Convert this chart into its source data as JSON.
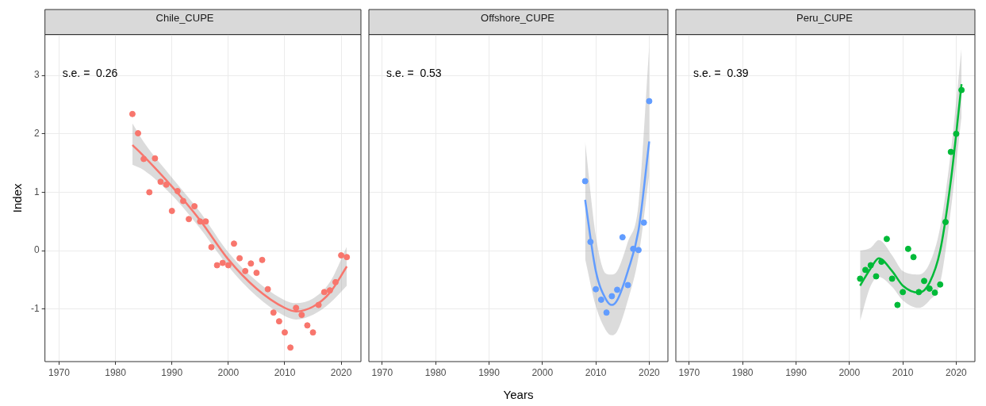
{
  "chart_data": [
    {
      "type": "scatter",
      "title": "Chile_CUPE",
      "ylabel": "Index",
      "annotations": [
        "s.e. =  0.26"
      ],
      "xlim": [
        1967.5,
        2023.5
      ],
      "ylim": [
        -1.9,
        3.7
      ],
      "xticks": [
        1970,
        1980,
        1990,
        2000,
        2010,
        2020
      ],
      "yticks": [
        -1,
        0,
        1,
        2,
        3
      ],
      "grid": true,
      "series": [
        {
          "marker": "circle",
          "color": "#f8766d",
          "x": [
            1983,
            1984,
            1985,
            1986,
            1987,
            1988,
            1989,
            1990,
            1991,
            1992,
            1993,
            1994,
            1995,
            1996,
            1997,
            1998,
            1999,
            2000,
            2001,
            2002,
            2003,
            2004,
            2005,
            2006,
            2007,
            2008,
            2009,
            2010,
            2011,
            2012,
            2013,
            2014,
            2015,
            2016,
            2017,
            2018,
            2019,
            2020,
            2021
          ],
          "values": [
            2.34,
            2.01,
            1.57,
            1.0,
            1.58,
            1.18,
            1.13,
            0.68,
            1.02,
            0.85,
            0.54,
            0.76,
            0.5,
            0.5,
            0.06,
            -0.25,
            -0.21,
            -0.25,
            0.12,
            -0.13,
            -0.35,
            -0.22,
            -0.38,
            -0.16,
            -0.66,
            -1.06,
            -1.21,
            -1.4,
            -1.66,
            -0.98,
            -1.1,
            -1.28,
            -1.4,
            -0.93,
            -0.71,
            -0.68,
            -0.54,
            -0.08,
            -0.11
          ]
        },
        {
          "type": "line",
          "marker": "none",
          "color": "#f8766d",
          "x": [
            1983,
            1985,
            1990,
            1995,
            2000,
            2005,
            2010,
            2012,
            2015,
            2018,
            2021
          ],
          "values": [
            1.81,
            1.62,
            1.1,
            0.52,
            -0.15,
            -0.65,
            -0.98,
            -1.04,
            -0.96,
            -0.72,
            -0.27
          ],
          "lower": [
            1.47,
            1.38,
            0.95,
            0.38,
            -0.27,
            -0.78,
            -1.12,
            -1.18,
            -1.1,
            -0.9,
            -0.6
          ],
          "upper": [
            2.18,
            1.86,
            1.25,
            0.66,
            -0.03,
            -0.52,
            -0.85,
            -0.9,
            -0.82,
            -0.54,
            0.07
          ]
        }
      ]
    },
    {
      "type": "scatter",
      "title": "Offshore_CUPE",
      "xlabel": "Years",
      "annotations": [
        "s.e. =  0.53"
      ],
      "xlim": [
        1967.5,
        2023.5
      ],
      "ylim": [
        -1.9,
        3.7
      ],
      "xticks": [
        1970,
        1980,
        1990,
        2000,
        2010,
        2020
      ],
      "yticks": [
        -1,
        0,
        1,
        2,
        3
      ],
      "tick_labels": "x",
      "grid": true,
      "series": [
        {
          "marker": "circle",
          "color": "#619cff",
          "x": [
            2008,
            2009,
            2010,
            2011,
            2012,
            2013,
            2014,
            2015,
            2016,
            2017,
            2018,
            2019,
            2020
          ],
          "values": [
            1.19,
            0.15,
            -0.66,
            -0.84,
            -1.06,
            -0.78,
            -0.67,
            0.23,
            -0.59,
            0.03,
            0.01,
            0.48,
            2.56
          ]
        },
        {
          "type": "line",
          "marker": "none",
          "color": "#619cff",
          "x": [
            2008,
            2010,
            2012,
            2013,
            2014,
            2016,
            2018,
            2020
          ],
          "values": [
            0.87,
            -0.35,
            -0.85,
            -0.93,
            -0.85,
            -0.35,
            0.35,
            1.87
          ],
          "lower": [
            -0.14,
            -0.95,
            -1.38,
            -1.45,
            -1.38,
            -0.85,
            -0.1,
            1.3
          ],
          "upper": [
            1.87,
            0.25,
            -0.4,
            -0.41,
            -0.35,
            0.15,
            0.8,
            3.5
          ]
        }
      ]
    },
    {
      "type": "scatter",
      "title": "Peru_CUPE",
      "annotations": [
        "s.e. =  0.39"
      ],
      "xlim": [
        1967.5,
        2023.5
      ],
      "ylim": [
        -1.9,
        3.7
      ],
      "xticks": [
        1970,
        1980,
        1990,
        2000,
        2010,
        2020
      ],
      "yticks": [
        -1,
        0,
        1,
        2,
        3
      ],
      "tick_labels": "x",
      "grid": true,
      "series": [
        {
          "marker": "circle",
          "color": "#00ba38",
          "x": [
            2002,
            2003,
            2004,
            2005,
            2006,
            2007,
            2008,
            2009,
            2010,
            2011,
            2012,
            2013,
            2014,
            2015,
            2016,
            2017,
            2018,
            2019,
            2020,
            2021
          ],
          "values": [
            -0.48,
            -0.33,
            -0.25,
            -0.44,
            -0.19,
            0.2,
            -0.48,
            -0.93,
            -0.71,
            0.03,
            -0.11,
            -0.71,
            -0.52,
            -0.65,
            -0.72,
            -0.58,
            0.49,
            1.69,
            2.0,
            2.75
          ]
        },
        {
          "type": "line",
          "marker": "none",
          "color": "#00ba38",
          "x": [
            2002,
            2004,
            2005.5,
            2008,
            2010,
            2013,
            2015,
            2017,
            2019,
            2021
          ],
          "values": [
            -0.6,
            -0.3,
            -0.13,
            -0.35,
            -0.6,
            -0.72,
            -0.55,
            0.0,
            1.2,
            2.85
          ],
          "lower": [
            -1.2,
            -0.6,
            -0.45,
            -0.62,
            -0.85,
            -0.98,
            -0.85,
            -0.55,
            0.7,
            2.3
          ],
          "upper": [
            0.0,
            0.05,
            0.18,
            -0.08,
            -0.35,
            -0.41,
            -0.22,
            0.4,
            1.7,
            3.47
          ]
        }
      ]
    }
  ]
}
